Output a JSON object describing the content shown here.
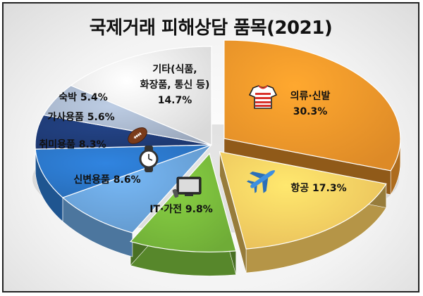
{
  "chart_data": {
    "type": "pie",
    "title": "국제거래 피해상담 품목(2021)",
    "slices": [
      {
        "name": "의류·신발",
        "value": 30.3,
        "value_label": "30.3%",
        "color": "#f0962a",
        "icon": "tshirt-icon",
        "exploded": true
      },
      {
        "name": "항공",
        "value": 17.3,
        "value_label": "17.3%",
        "color": "#fccf62",
        "icon": "airplane-icon",
        "exploded": true
      },
      {
        "name": "IT·가전",
        "value": 9.8,
        "value_label": "9.8%",
        "color": "#79bb3c",
        "icon": "tv-icon",
        "exploded": true
      },
      {
        "name": "신변용품",
        "value": 8.6,
        "value_label": "8.6%",
        "color": "#6aa4dc",
        "icon": "watch-icon"
      },
      {
        "name": "취미용품",
        "value": 8.3,
        "value_label": "8.3%",
        "color": "#2b76c8",
        "icon": "football-icon"
      },
      {
        "name": "가사용품",
        "value": 5.6,
        "value_label": "5.6%",
        "color": "#1f3c78",
        "icon": ""
      },
      {
        "name": "숙박",
        "value": 5.4,
        "value_label": "5.4%",
        "color": "#a9b7cc",
        "icon": ""
      },
      {
        "name": "기타(식품, 화장품, 통신 등)",
        "name_lines": [
          "기타(식품,",
          "화장품, 통신 등)"
        ],
        "value": 14.7,
        "value_label": "14.7%",
        "color": "#ececec",
        "icon": ""
      }
    ]
  }
}
